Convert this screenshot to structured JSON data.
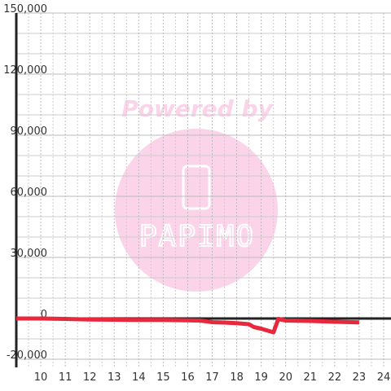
{
  "chart_data": {
    "type": "line",
    "x": [
      9,
      10,
      11,
      12,
      13,
      14,
      15,
      16,
      16.5,
      17,
      17.5,
      18,
      18.5,
      18.7,
      19,
      19.5,
      19.7,
      20,
      21,
      22,
      23
    ],
    "series": [
      {
        "color": "#e8283c",
        "values": [
          0,
          0,
          -200,
          -500,
          -600,
          -700,
          -700,
          -900,
          -1000,
          -1800,
          -2000,
          -2300,
          -2800,
          -4200,
          -5000,
          -6800,
          -200,
          -1000,
          -1200,
          -1600,
          -1900
        ]
      }
    ],
    "xlim": [
      9,
      24.3
    ],
    "xticks": [
      10,
      11,
      12,
      13,
      14,
      15,
      16,
      17,
      18,
      19,
      20,
      21,
      22,
      23,
      24
    ],
    "x_minor_ticks": [
      9.5,
      10.5,
      11.5,
      12.5,
      13.5,
      14.5,
      15.5,
      16.5,
      17.5,
      18.5,
      19.5,
      20.5,
      21.5,
      22.5,
      23.5
    ],
    "ylim": [
      -24000,
      150000
    ],
    "yticks": [
      {
        "value": -20000,
        "label": "-20,000"
      },
      0,
      {
        "value": 30000,
        "label": "30,000"
      },
      {
        "value": 60000,
        "label": "60,000"
      },
      {
        "value": 90000,
        "label": "90,000"
      },
      {
        "value": 120000,
        "label": "120,000"
      },
      {
        "value": 150000,
        "label": "150,000"
      }
    ],
    "y_minor_ticks": [
      -10000,
      10000,
      20000,
      40000,
      50000,
      70000,
      80000,
      100000,
      110000,
      130000,
      140000
    ],
    "grid": true,
    "annotations": [
      "Powered by",
      "PAPIMO"
    ]
  }
}
